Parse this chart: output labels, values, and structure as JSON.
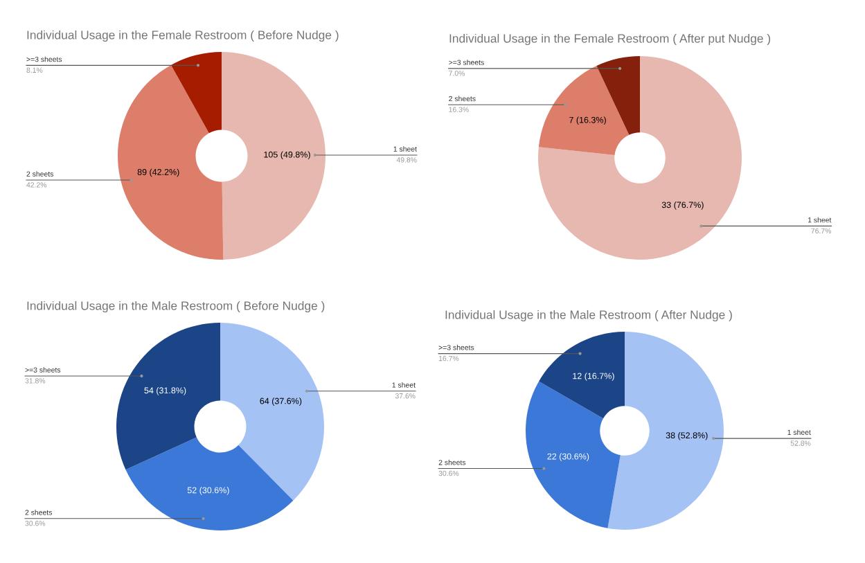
{
  "chart_data": [
    {
      "type": "donut",
      "title": "Individual Usage in the Female Restroom ( Before Nudge )",
      "categories": [
        "1 sheet",
        "2 sheets",
        ">=3 sheets"
      ],
      "values": [
        49.8,
        42.2,
        8.1
      ],
      "colors": [
        "#e6b8af",
        "#dd7e6b",
        "#a61c00"
      ],
      "value_labels": [
        "49.8%",
        "42.2%",
        "8.1%"
      ],
      "annotations": [
        {
          "text": "105 (49.8%)",
          "x": "1 sheet"
        },
        {
          "text": "89 (42.2%)",
          "x": "2 sheets"
        }
      ]
    },
    {
      "type": "donut",
      "title": "Individual Usage in the Female Restroom ( After put Nudge )",
      "categories": [
        "1 sheet",
        "2 sheets",
        ">=3 sheets"
      ],
      "values": [
        76.7,
        16.3,
        7.0
      ],
      "colors": [
        "#e6b8af",
        "#dd7e6b",
        "#85200c"
      ],
      "value_labels": [
        "76.7%",
        "16.3%",
        "7.0%"
      ],
      "annotations": [
        {
          "text": "33 (76.7%)",
          "x": "1 sheet"
        },
        {
          "text": "7 (16.3%)",
          "x": "2 sheets"
        }
      ]
    },
    {
      "type": "donut",
      "title": "Individual Usage in the Male Restroom ( Before Nudge )",
      "categories": [
        "1 sheet",
        "2 sheets",
        ">=3 sheets"
      ],
      "values": [
        37.6,
        30.6,
        31.8
      ],
      "colors": [
        "#a4c2f4",
        "#3c78d8",
        "#1c4587"
      ],
      "value_labels": [
        "37.6%",
        "30.6%",
        "31.8%"
      ],
      "annotations": [
        {
          "text": "64 (37.6%)",
          "x": "1 sheet"
        },
        {
          "text": "52 (30.6%)",
          "x": "2 sheets"
        },
        {
          "text": "54 (31.8%)",
          "x": ">=3 sheets"
        }
      ]
    },
    {
      "type": "donut",
      "title": "Individual Usage in the Male Restroom ( After Nudge )",
      "categories": [
        "1 sheet",
        "2 sheets",
        ">=3 sheets"
      ],
      "values": [
        52.8,
        30.6,
        16.7
      ],
      "colors": [
        "#a4c2f4",
        "#3c78d8",
        "#1c4587"
      ],
      "value_labels": [
        "52.8%",
        "30.6%",
        "16.7%"
      ],
      "annotations": [
        {
          "text": "38 (52.8%)",
          "x": "1 sheet"
        },
        {
          "text": "22 (30.6%)",
          "x": "2 sheets"
        },
        {
          "text": "12 (16.7%)",
          "x": ">=3 sheets"
        }
      ]
    }
  ]
}
